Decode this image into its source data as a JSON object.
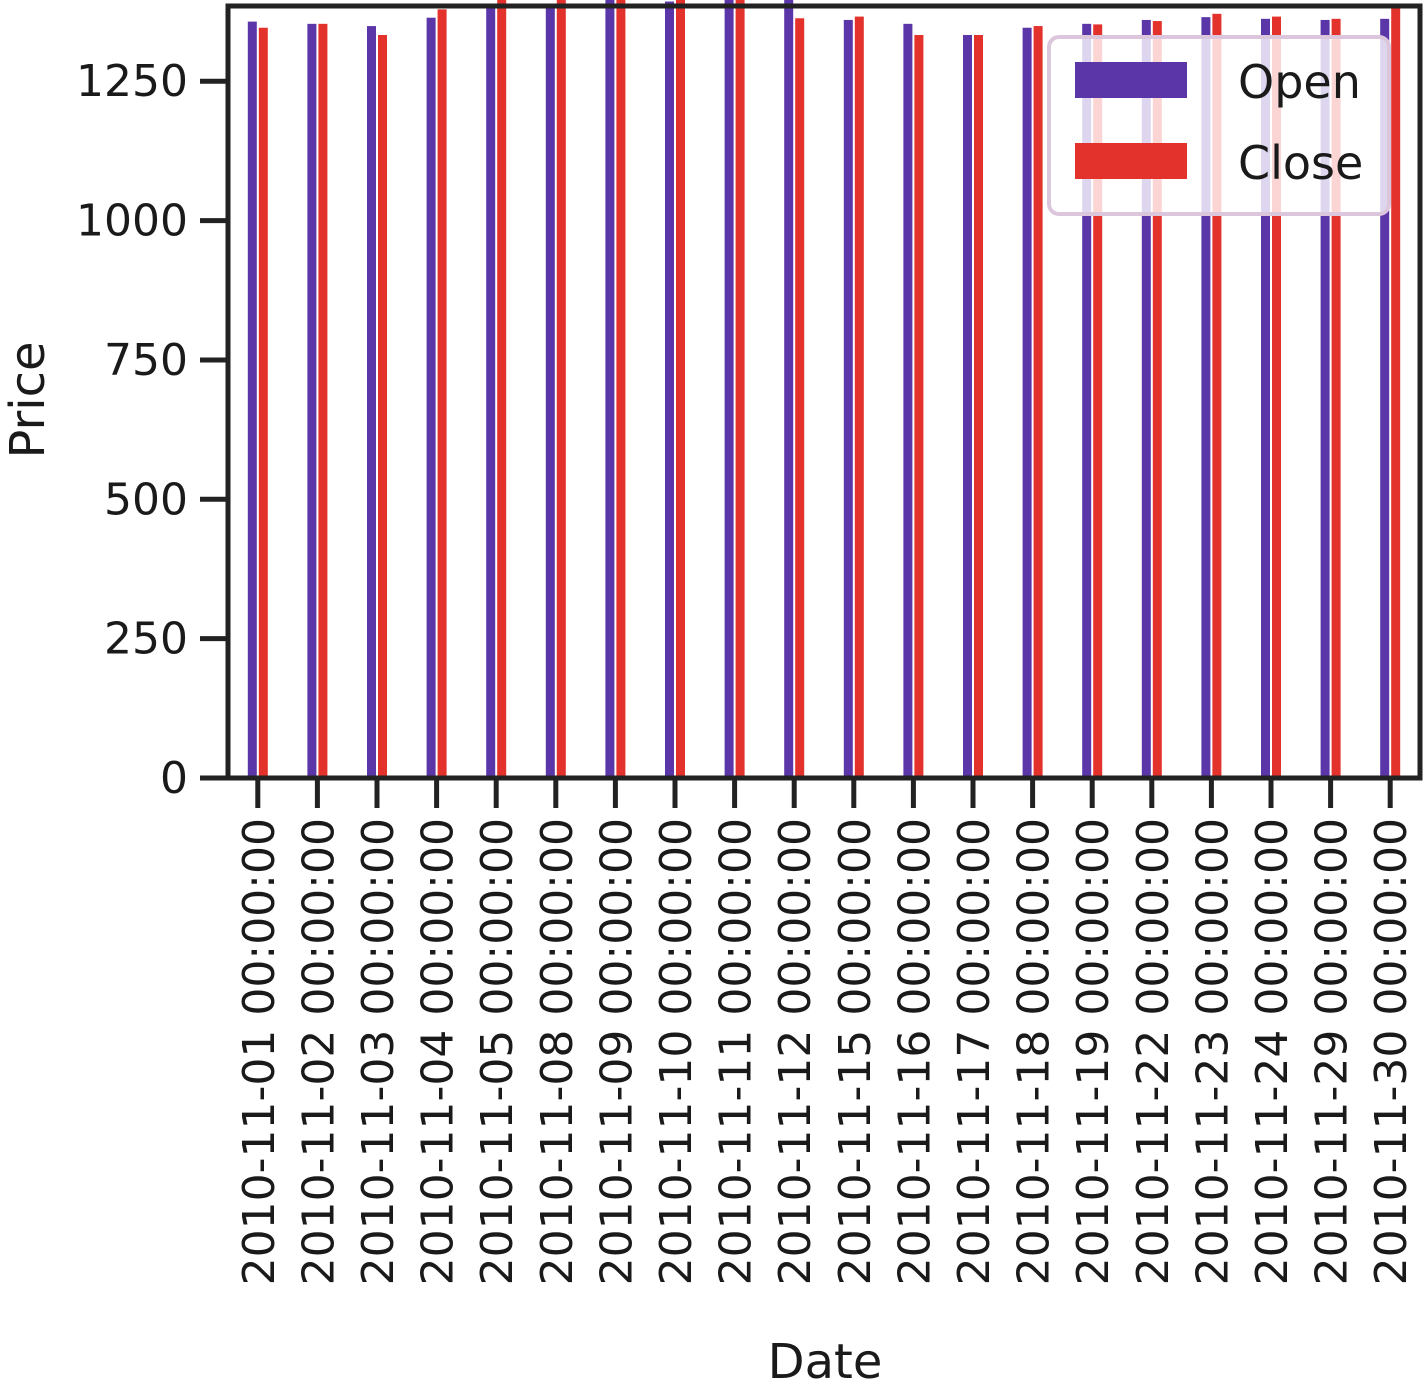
{
  "chart_data": {
    "type": "bar",
    "xlabel": "Date",
    "ylabel": "Price",
    "ylim": [
      0,
      1385
    ],
    "yticks": [
      "0",
      "250",
      "500",
      "750",
      "1000",
      "1250"
    ],
    "ytick_values": [
      0,
      250,
      500,
      750,
      1000,
      1250
    ],
    "categories": [
      "2010-11-01 00:00:00",
      "2010-11-02 00:00:00",
      "2010-11-03 00:00:00",
      "2010-11-04 00:00:00",
      "2010-11-05 00:00:00",
      "2010-11-08 00:00:00",
      "2010-11-09 00:00:00",
      "2010-11-10 00:00:00",
      "2010-11-11 00:00:00",
      "2010-11-12 00:00:00",
      "2010-11-15 00:00:00",
      "2010-11-16 00:00:00",
      "2010-11-17 00:00:00",
      "2010-11-18 00:00:00",
      "2010-11-19 00:00:00",
      "2010-11-22 00:00:00",
      "2010-11-23 00:00:00",
      "2010-11-24 00:00:00",
      "2010-11-29 00:00:00",
      "2010-11-30 00:00:00"
    ],
    "series": [
      {
        "name": "Open",
        "color": "#5b36a8",
        "values": [
          1357,
          1353,
          1349,
          1364,
          1388,
          1387,
          1404,
          1393,
          1398,
          1405,
          1360,
          1353,
          1333,
          1346,
          1353,
          1360,
          1365,
          1362,
          1360,
          1362
        ]
      },
      {
        "name": "Close",
        "color": "#e3312b",
        "values": [
          1346,
          1353,
          1333,
          1379,
          1396,
          1400,
          1406,
          1397,
          1399,
          1363,
          1366,
          1333,
          1333,
          1349,
          1352,
          1358,
          1371,
          1366,
          1362,
          1381
        ]
      }
    ],
    "legend": {
      "position": "top-right",
      "entries": [
        "Open",
        "Close"
      ]
    },
    "grid": false
  }
}
